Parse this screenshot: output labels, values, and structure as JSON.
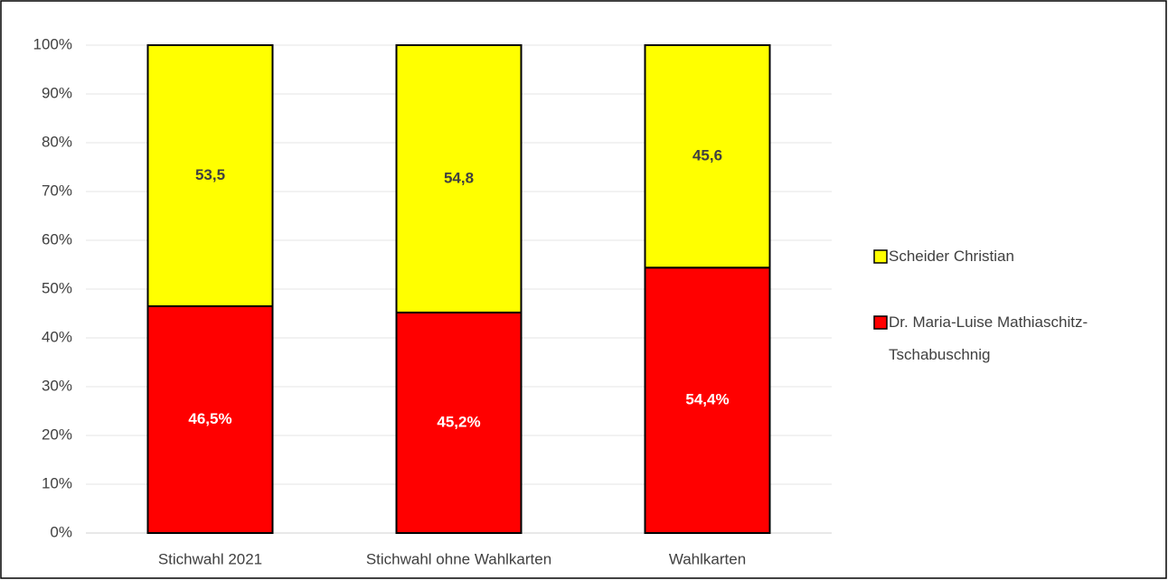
{
  "chart_data": {
    "type": "stacked_bar",
    "categories": [
      "Stichwahl 2021",
      "Stichwahl ohne Wahlkarten",
      "Wahlkarten"
    ],
    "series": [
      {
        "name": "Dr. Maria-Luise Mathiaschitz-Tschabuschnig",
        "color": "#ff0000",
        "values": [
          46.5,
          45.2,
          54.4
        ],
        "value_labels": [
          "46,5%",
          "45,2%",
          "54,4%"
        ]
      },
      {
        "name": "Scheider Christian",
        "color": "#ffff00",
        "values": [
          53.5,
          54.8,
          45.6
        ],
        "value_labels": [
          "53,5",
          "54,8",
          "45,6"
        ]
      }
    ],
    "ylim": [
      0,
      100
    ],
    "yticks": [
      {
        "value": 0,
        "label": "0%"
      },
      {
        "value": 10,
        "label": "10%"
      },
      {
        "value": 20,
        "label": "20%"
      },
      {
        "value": 30,
        "label": "30%"
      },
      {
        "value": 40,
        "label": "40%"
      },
      {
        "value": 50,
        "label": "50%"
      },
      {
        "value": 60,
        "label": "60%"
      },
      {
        "value": 70,
        "label": "70%"
      },
      {
        "value": 80,
        "label": "80%"
      },
      {
        "value": 90,
        "label": "90%"
      },
      {
        "value": 100,
        "label": "100%"
      }
    ],
    "grid": true
  }
}
